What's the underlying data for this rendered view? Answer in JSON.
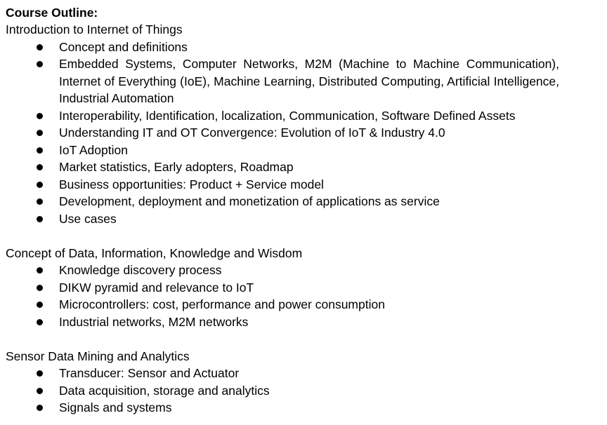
{
  "title": "Course Outline:",
  "sections": [
    {
      "heading": "Introduction to Internet of Things",
      "items": [
        "Concept and definitions",
        "Embedded Systems, Computer Networks, M2M (Machine to Machine Communication), Internet of Everything (IoE), Machine Learning, Distributed Computing, Artificial Intelligence, Industrial Automation",
        "Interoperability, Identification, localization, Communication, Software Defined Assets",
        "Understanding IT and OT Convergence: Evolution of IoT & Industry 4.0",
        "IoT Adoption",
        "Market statistics, Early adopters, Roadmap",
        "Business opportunities: Product + Service model",
        "Development, deployment and monetization of applications as service",
        "Use cases"
      ]
    },
    {
      "heading": "Concept of Data, Information, Knowledge and Wisdom",
      "items": [
        "Knowledge discovery process",
        "DIKW pyramid and relevance to IoT",
        "Microcontrollers: cost, performance and power consumption",
        "Industrial networks, M2M networks"
      ]
    },
    {
      "heading": "Sensor Data Mining and Analytics",
      "items": [
        "Transducer: Sensor and Actuator",
        "Data acquisition, storage and analytics",
        "Signals and systems"
      ]
    }
  ]
}
